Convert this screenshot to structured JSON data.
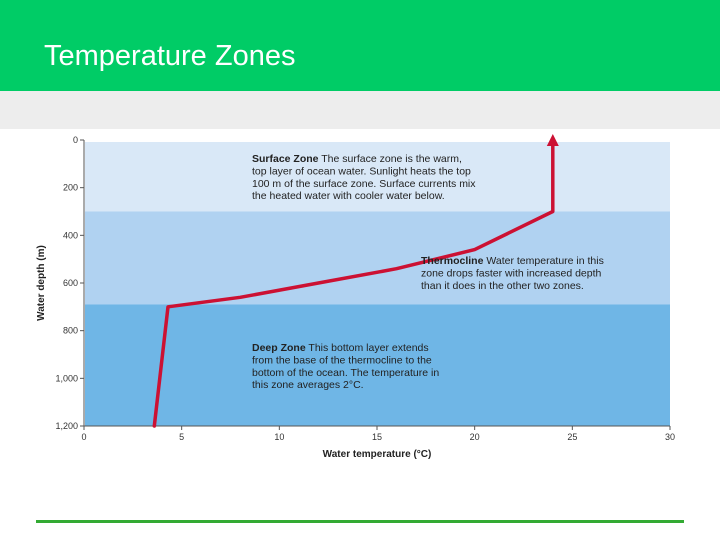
{
  "slide": {
    "title": "Temperature Zones",
    "colors": {
      "header": "#00cc66",
      "footer_line": "#33aa33"
    }
  },
  "chart_data": {
    "type": "line",
    "title": "",
    "xlabel": "Water temperature (°C)",
    "ylabel": "Water depth (m)",
    "xlim": [
      0,
      30
    ],
    "ylim": [
      1200,
      0
    ],
    "y_inverted": true,
    "x_ticks": [
      "0",
      "5",
      "10",
      "15",
      "20",
      "25",
      "30"
    ],
    "x_tick_values": [
      0,
      5,
      10,
      15,
      20,
      25,
      30
    ],
    "y_ticks": [
      "0",
      "200",
      "400",
      "600",
      "800",
      "1,000",
      "1,200"
    ],
    "y_tick_values": [
      0,
      200,
      400,
      600,
      800,
      1000,
      1200
    ],
    "series": [
      {
        "color": "#cc1133",
        "points": [
          [
            3.6,
            1200
          ],
          [
            4.3,
            700
          ],
          [
            8,
            660
          ],
          [
            12,
            600
          ],
          [
            16,
            540
          ],
          [
            20,
            460
          ],
          [
            24,
            300
          ],
          [
            24,
            0
          ]
        ],
        "arrow_at_end": true
      }
    ],
    "zones": [
      {
        "depth_from": 0,
        "depth_to": 300,
        "color": "#d9e8f7"
      },
      {
        "depth_from": 300,
        "depth_to": 690,
        "color": "#b0d2f1"
      },
      {
        "depth_from": 690,
        "depth_to": 1200,
        "color": "#6fb6e6"
      }
    ],
    "annotations": [
      {
        "heading": "Surface Zone",
        "lines": [
          "The surface zone is the warm,",
          "top layer of ocean water. Sunlight heats the top",
          "100 m of the surface zone. Surface currents mix",
          "the heated water with cooler water below."
        ]
      },
      {
        "heading": "Thermocline",
        "lines": [
          "Water temperature in this",
          "zone drops faster with increased depth",
          "than it does in the other two zones."
        ]
      },
      {
        "heading": "Deep Zone",
        "lines": [
          "This bottom layer extends",
          "from the base of the thermocline to the",
          "bottom of the ocean. The temperature in",
          "this zone averages 2°C."
        ]
      }
    ]
  }
}
